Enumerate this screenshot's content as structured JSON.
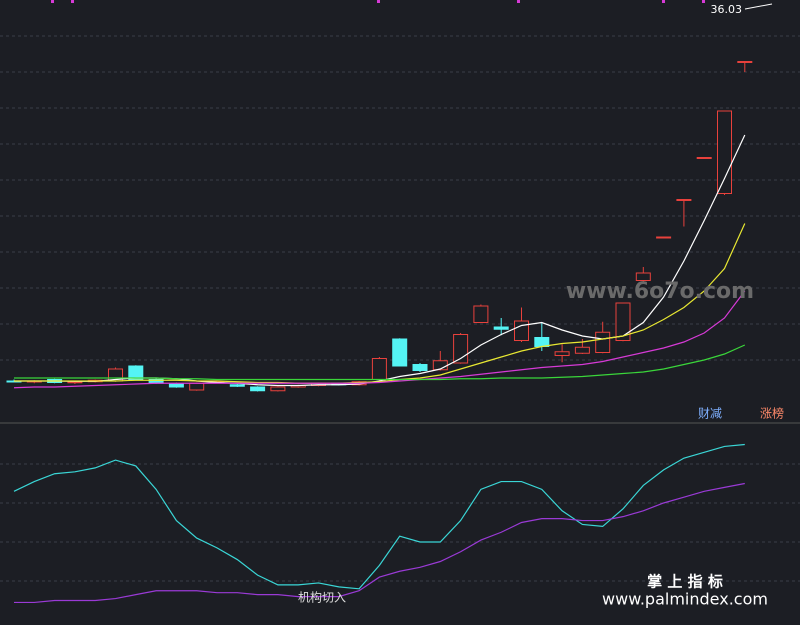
{
  "chart_data": [
    {
      "type": "candlestick",
      "ylim": [
        10,
        36.4
      ],
      "grid": true,
      "up_color": "#e8413c",
      "down_color": "#54f4f4",
      "open": [
        11.0,
        10.95,
        11.1,
        10.9,
        10.95,
        11.0,
        12.0,
        11.1,
        10.8,
        10.4,
        10.9,
        10.75,
        10.6,
        10.35,
        10.6,
        10.7,
        10.85,
        10.75,
        11.1,
        13.8,
        12.1,
        11.75,
        12.2,
        14.9,
        14.6,
        13.7,
        13.9,
        12.7,
        12.85,
        12.9,
        13.7,
        17.7,
        20.6,
        23.1,
        25.9,
        23.5,
        32.3
      ],
      "high": [
        11.1,
        11.05,
        11.15,
        11.0,
        11.1,
        11.9,
        12.05,
        11.2,
        10.9,
        10.9,
        11.0,
        10.8,
        10.65,
        10.65,
        10.75,
        10.9,
        10.9,
        11.0,
        12.6,
        13.85,
        12.2,
        13.0,
        14.2,
        16.1,
        15.2,
        15.9,
        14.9,
        13.45,
        13.8,
        14.95,
        16.2,
        18.6,
        20.6,
        23.1,
        25.9,
        29.0,
        32.3
      ],
      "low": [
        10.9,
        10.85,
        10.85,
        10.8,
        10.9,
        10.95,
        11.05,
        10.8,
        10.55,
        10.35,
        10.85,
        10.6,
        10.3,
        10.3,
        10.55,
        10.65,
        10.7,
        10.7,
        11.0,
        12.0,
        11.6,
        11.7,
        12.15,
        14.9,
        14.05,
        13.6,
        13.0,
        12.25,
        12.8,
        12.85,
        13.65,
        17.6,
        20.6,
        21.3,
        25.9,
        23.4,
        31.6
      ],
      "close": [
        10.95,
        11.0,
        10.9,
        10.95,
        11.05,
        11.8,
        11.1,
        10.85,
        10.6,
        10.85,
        10.95,
        10.65,
        10.35,
        10.6,
        10.7,
        10.85,
        10.75,
        10.95,
        12.5,
        12.0,
        11.7,
        12.35,
        14.1,
        16.0,
        14.45,
        15.0,
        13.3,
        12.95,
        13.25,
        14.25,
        16.2,
        18.2,
        20.6,
        23.1,
        25.9,
        29.0,
        32.3
      ],
      "series": [
        {
          "color": "#ffffff",
          "values": [
            11.0,
            11.0,
            11.0,
            10.98,
            10.98,
            11.1,
            11.2,
            11.2,
            11.15,
            11.0,
            10.9,
            10.85,
            10.75,
            10.7,
            10.7,
            10.75,
            10.75,
            10.8,
            11.0,
            11.3,
            11.5,
            11.8,
            12.5,
            13.4,
            14.1,
            14.7,
            14.9,
            14.4,
            14.0,
            13.8,
            14.0,
            14.9,
            16.6,
            19.0,
            21.7,
            24.5,
            27.4
          ]
        },
        {
          "color": "#e8e832",
          "values": [
            11.0,
            11.0,
            11.0,
            11.0,
            11.0,
            11.0,
            11.05,
            11.05,
            11.05,
            11.0,
            11.0,
            10.95,
            10.9,
            10.9,
            10.85,
            10.85,
            10.85,
            10.9,
            10.95,
            11.1,
            11.2,
            11.4,
            11.8,
            12.2,
            12.6,
            13.0,
            13.3,
            13.5,
            13.6,
            13.8,
            14.0,
            14.4,
            15.1,
            15.9,
            17.0,
            18.5,
            21.5
          ]
        },
        {
          "color": "#d63ad6",
          "values": [
            10.55,
            10.6,
            10.6,
            10.65,
            10.7,
            10.75,
            10.8,
            10.85,
            10.85,
            10.85,
            10.85,
            10.85,
            10.85,
            10.85,
            10.85,
            10.85,
            10.85,
            10.85,
            10.9,
            11.0,
            11.1,
            11.2,
            11.3,
            11.45,
            11.6,
            11.75,
            11.9,
            12.0,
            12.1,
            12.3,
            12.6,
            12.9,
            13.2,
            13.6,
            14.2,
            15.2,
            17.0
          ]
        },
        {
          "color": "#3ad63a",
          "values": [
            11.2,
            11.2,
            11.2,
            11.2,
            11.2,
            11.2,
            11.2,
            11.2,
            11.15,
            11.15,
            11.1,
            11.1,
            11.1,
            11.1,
            11.1,
            11.1,
            11.1,
            11.1,
            11.1,
            11.1,
            11.1,
            11.1,
            11.15,
            11.15,
            11.2,
            11.2,
            11.2,
            11.25,
            11.3,
            11.4,
            11.5,
            11.6,
            11.8,
            12.1,
            12.4,
            12.8,
            13.4
          ]
        }
      ],
      "annotations": [
        "36.03",
        "财减",
        "涨榜"
      ]
    },
    {
      "type": "line",
      "ylim": [
        0,
        100
      ],
      "grid": true,
      "series": [
        {
          "color": "#3ad6d6",
          "values": [
            66,
            71,
            75,
            76,
            78,
            82,
            79,
            67,
            51,
            42,
            37,
            31,
            23,
            18,
            18,
            19,
            17,
            16,
            28,
            43,
            40,
            40,
            51,
            67,
            71,
            71,
            67,
            56,
            49,
            48,
            57,
            69,
            77,
            83,
            86,
            89,
            90
          ]
        },
        {
          "color": "#9a3ad6",
          "values": [
            9,
            9,
            10,
            10,
            10,
            11,
            13,
            15,
            15,
            15,
            14,
            14,
            13,
            13,
            12,
            12,
            12,
            15,
            22,
            25,
            27,
            30,
            35,
            41,
            45,
            50,
            52,
            52,
            51,
            51,
            53,
            56,
            60,
            63,
            66,
            68,
            70
          ]
        }
      ],
      "annotations": [
        "机构切入"
      ]
    }
  ],
  "watermarks": [
    "www.6o7o.com",
    "掌 上 指 标",
    "www.palmindex.com"
  ]
}
